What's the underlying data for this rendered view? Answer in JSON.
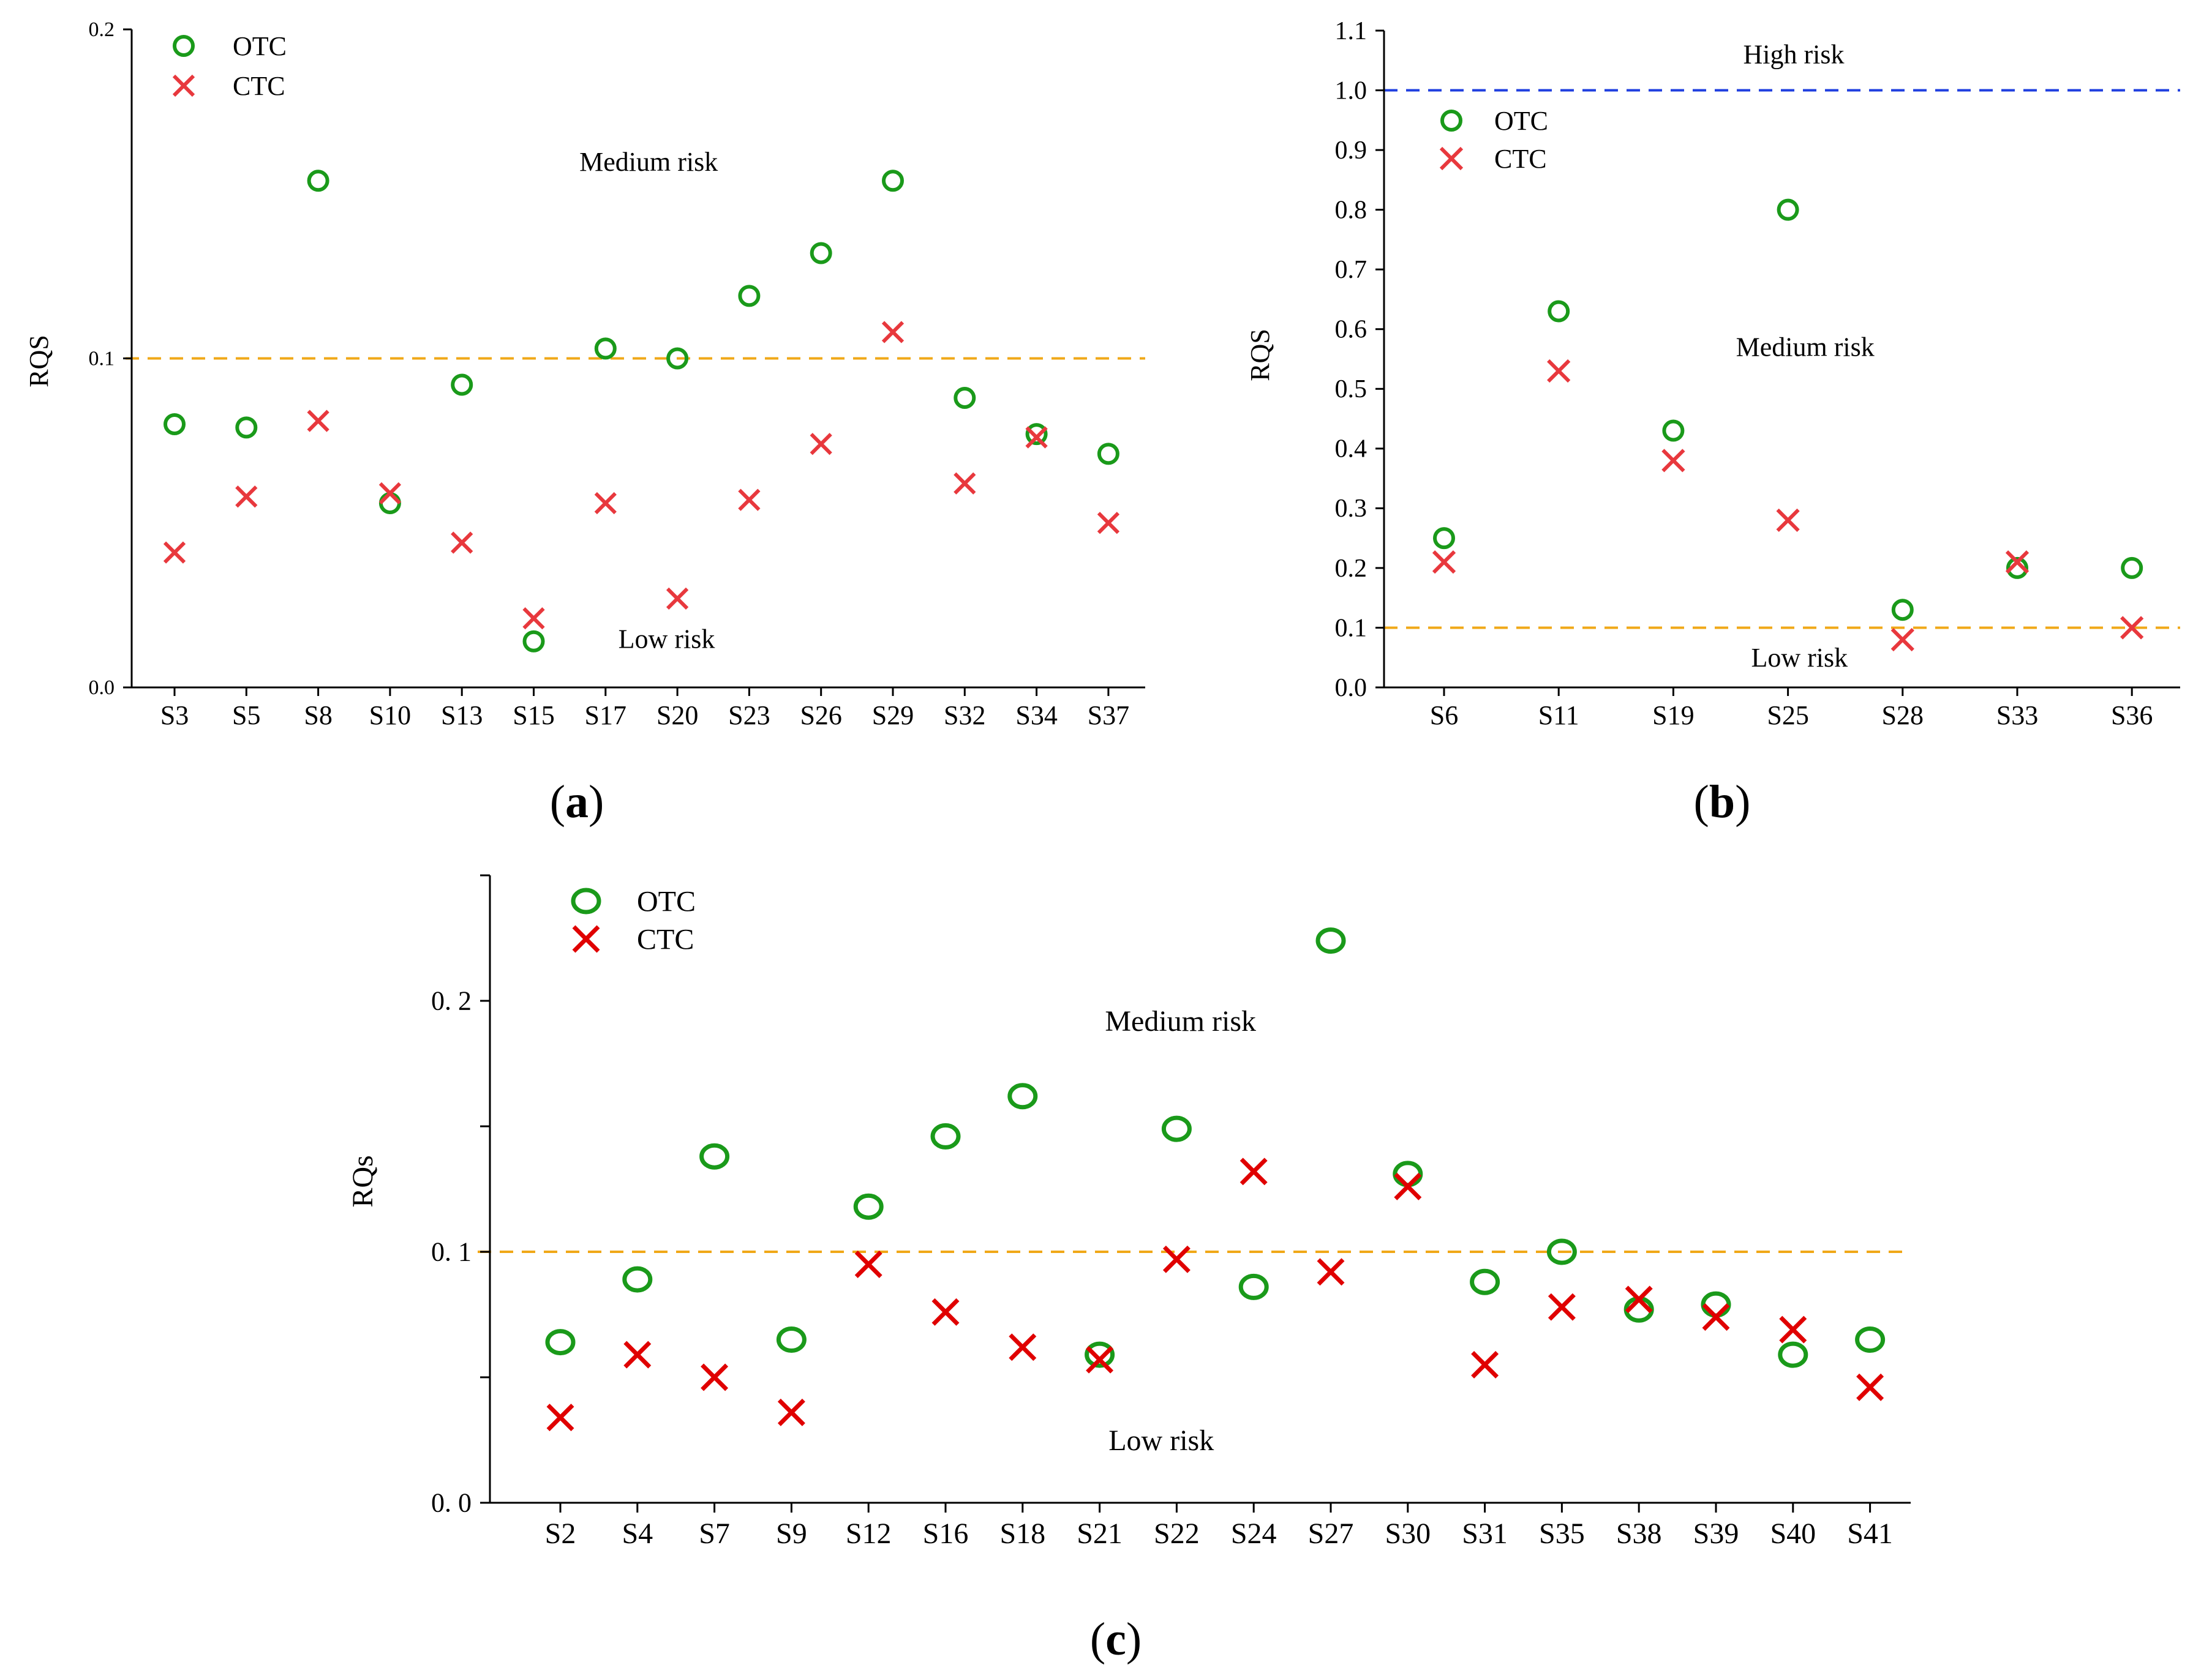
{
  "colors": {
    "otc": "#1a9a1a",
    "ctc": "#e8383d",
    "ctc_c": "#e00000",
    "threshold_low": "#f0a818",
    "threshold_high": "#1f3fe0"
  },
  "chart_data": [
    {
      "panel": "a",
      "panel_label_open": "(",
      "panel_label_letter": "a",
      "panel_label_close": ")",
      "type": "scatter",
      "ylabel": "RQS",
      "ylim": [
        0,
        0.2
      ],
      "yticks": [
        "0.0",
        "0.1",
        "0.2"
      ],
      "ytick_values": [
        0,
        0.1,
        0.2
      ],
      "categories": [
        "S3",
        "S5",
        "S8",
        "S10",
        "S13",
        "S15",
        "S17",
        "S20",
        "S23",
        "S26",
        "S29",
        "S32",
        "S34",
        "S37"
      ],
      "series": [
        {
          "name": "OTC",
          "marker": "circle",
          "values": [
            0.08,
            0.079,
            0.154,
            0.056,
            0.092,
            0.014,
            0.103,
            0.1,
            0.119,
            0.132,
            0.154,
            0.088,
            0.077,
            0.071
          ]
        },
        {
          "name": "CTC",
          "marker": "x",
          "values": [
            0.041,
            0.058,
            0.081,
            0.059,
            0.044,
            0.021,
            0.056,
            0.027,
            0.057,
            0.074,
            0.108,
            0.062,
            0.076,
            0.05
          ]
        }
      ],
      "thresholds": [
        {
          "value": 0.1,
          "color": "threshold_low"
        }
      ],
      "annotations": [
        {
          "text": "Medium risk",
          "category_pos": 6.6,
          "y": 0.157
        },
        {
          "text": "Low risk",
          "category_pos": 6.85,
          "y": 0.012
        }
      ],
      "legend": [
        "OTC",
        "CTC"
      ],
      "legend_position": "top-left"
    },
    {
      "panel": "b",
      "panel_label_open": "(",
      "panel_label_letter": "b",
      "panel_label_close": ")",
      "type": "scatter",
      "ylabel": "RQS",
      "ylim": [
        0,
        1.1
      ],
      "yticks": [
        "0.0",
        "0.1",
        "0.2",
        "0.3",
        "0.4",
        "0.5",
        "0.6",
        "0.7",
        "0.8",
        "0.9",
        "1.0",
        "1.1"
      ],
      "ytick_values": [
        0,
        0.1,
        0.2,
        0.3,
        0.4,
        0.5,
        0.6,
        0.7,
        0.8,
        0.9,
        1.0,
        1.1
      ],
      "categories": [
        "S6",
        "S11",
        "S19",
        "S25",
        "S28",
        "S33",
        "S36"
      ],
      "series": [
        {
          "name": "OTC",
          "marker": "circle",
          "values": [
            0.25,
            0.63,
            0.43,
            0.8,
            0.13,
            0.2,
            0.2
          ]
        },
        {
          "name": "CTC",
          "marker": "x",
          "values": [
            0.21,
            0.53,
            0.38,
            0.28,
            0.08,
            0.21,
            0.1
          ]
        }
      ],
      "thresholds": [
        {
          "value": 0.1,
          "color": "threshold_low"
        },
        {
          "value": 1.0,
          "color": "threshold_high"
        }
      ],
      "annotations": [
        {
          "text": "High risk",
          "category_pos": 3.05,
          "y": 1.045
        },
        {
          "text": "Medium risk",
          "category_pos": 3.15,
          "y": 0.555
        },
        {
          "text": "Low risk",
          "category_pos": 3.1,
          "y": 0.035
        }
      ],
      "legend": [
        "OTC",
        "CTC"
      ],
      "legend_position": "top-left"
    },
    {
      "panel": "c",
      "panel_label_open": "(",
      "panel_label_letter": "c",
      "panel_label_close": ")",
      "type": "scatter",
      "ylabel": "RQs",
      "ylim": [
        0,
        0.25
      ],
      "yticks": [
        "0. 0",
        "0. 1",
        "0. 2"
      ],
      "ytick_values": [
        0,
        0.1,
        0.2
      ],
      "categories": [
        "S2",
        "S4",
        "S7",
        "S9",
        "S12",
        "S16",
        "S18",
        "S21",
        "S22",
        "S24",
        "S27",
        "S30",
        "S31",
        "S35",
        "S38",
        "S39",
        "S40",
        "S41"
      ],
      "series": [
        {
          "name": "OTC",
          "marker": "circle",
          "values": [
            0.064,
            0.089,
            0.138,
            0.065,
            0.118,
            0.146,
            0.162,
            0.059,
            0.149,
            0.086,
            0.224,
            0.131,
            0.088,
            0.1,
            0.077,
            0.079,
            0.059,
            0.065
          ]
        },
        {
          "name": "CTC",
          "marker": "x",
          "values": [
            0.034,
            0.059,
            0.05,
            0.036,
            0.095,
            0.076,
            0.062,
            0.057,
            0.097,
            0.132,
            0.092,
            0.126,
            0.055,
            0.078,
            0.081,
            0.074,
            0.069,
            0.046
          ]
        }
      ],
      "thresholds": [
        {
          "value": 0.1,
          "color": "threshold_low"
        }
      ],
      "annotations": [
        {
          "text": "Medium risk",
          "category_pos": 8.05,
          "y": 0.188
        },
        {
          "text": "Low risk",
          "category_pos": 7.8,
          "y": 0.021
        }
      ],
      "legend": [
        "OTC",
        "CTC"
      ],
      "legend_position": "top-left"
    }
  ]
}
